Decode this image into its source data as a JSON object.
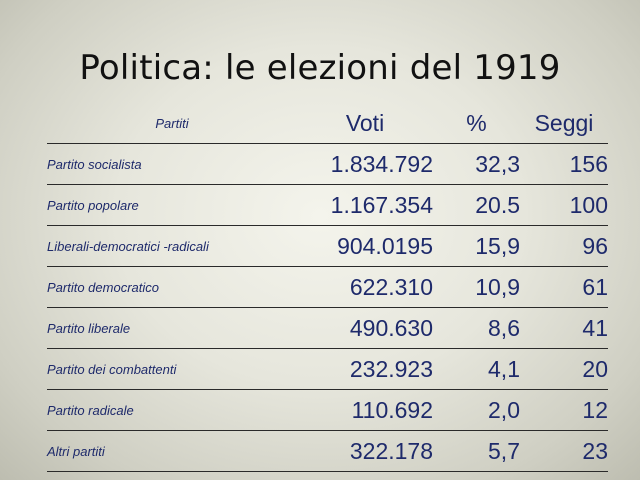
{
  "title": "Politica: le elezioni del 1919",
  "table": {
    "headers": {
      "party": "Partiti",
      "votes": "Voti",
      "percent": "%",
      "seats": "Seggi"
    },
    "rows": [
      {
        "party": "Partito socialista",
        "votes": "1.834.792",
        "percent": "32,3",
        "seats": "156"
      },
      {
        "party": "Partito popolare",
        "votes": "1.167.354",
        "percent": "20.5",
        "seats": "100"
      },
      {
        "party": "Liberali-democratici  -radicali",
        "votes": "904.0195",
        "percent": "15,9",
        "seats": "96"
      },
      {
        "party": "Partito democratico",
        "votes": "622.310",
        "percent": "10,9",
        "seats": "61"
      },
      {
        "party": "Partito liberale",
        "votes": "490.630",
        "percent": "8,6",
        "seats": "41"
      },
      {
        "party": "Partito dei combattenti",
        "votes": "232.923",
        "percent": "4,1",
        "seats": "20"
      },
      {
        "party": "Partito radicale",
        "votes": "110.692",
        "percent": "2,0",
        "seats": "12"
      },
      {
        "party": "Altri partiti",
        "votes": "322.178",
        "percent": "5,7",
        "seats": "23"
      }
    ]
  },
  "colors": {
    "table_text": "#1e2a6b",
    "title_text": "#111111",
    "rule": "#2a2a2a"
  }
}
